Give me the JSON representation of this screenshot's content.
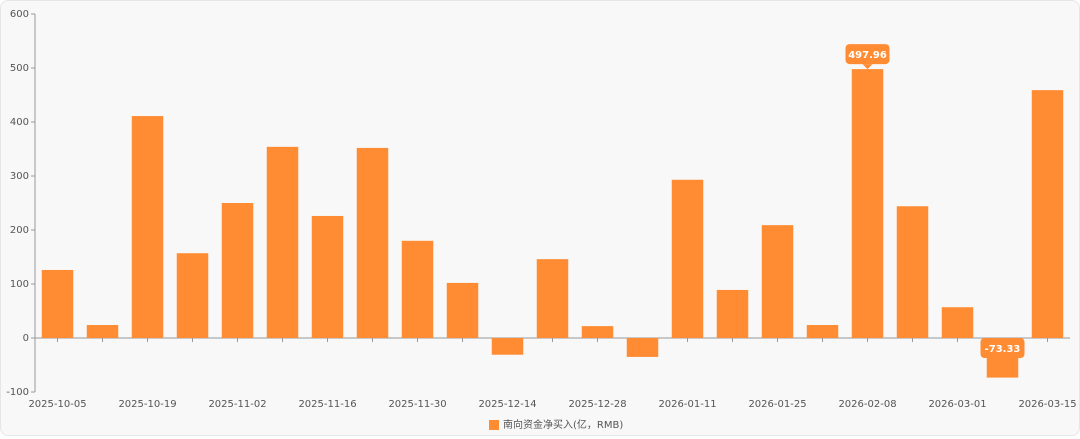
{
  "chart_data": {
    "type": "bar",
    "categories": [
      "2025-10-05",
      null,
      "2025-10-19",
      null,
      "2025-11-02",
      null,
      "2025-11-16",
      null,
      "2025-11-30",
      null,
      "2025-12-14",
      null,
      "2025-12-28",
      null,
      "2026-01-11",
      null,
      "2026-01-25",
      null,
      "2026-02-08",
      null,
      "2026-03-01",
      null,
      "2026-03-15"
    ],
    "series": [
      {
        "name": "南向资金净买入(亿，RMB)",
        "color": "#ff8c33",
        "values": [
          126,
          24,
          411,
          157,
          250,
          354,
          226,
          352,
          180,
          102,
          -31,
          146,
          22,
          -35,
          293,
          89,
          209,
          24,
          497.96,
          244,
          57,
          -73.33,
          459
        ]
      }
    ],
    "ylim": [
      -100,
      600
    ],
    "yticks": [
      -100,
      0,
      100,
      200,
      300,
      400,
      500,
      600
    ],
    "grid": false
  }
}
